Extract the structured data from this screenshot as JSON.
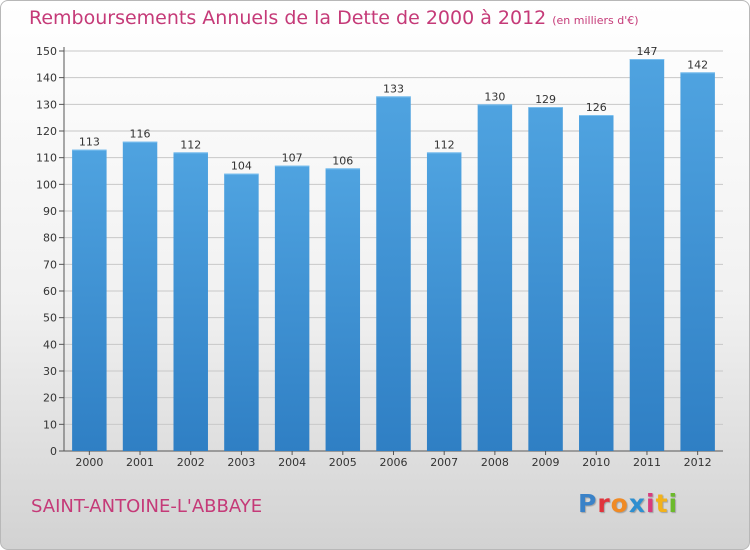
{
  "title": "Remboursements Annuels de la Dette de 2000 à 2012",
  "unit": "(en milliers d'€)",
  "commune": "SAINT-ANTOINE-L'ABBAYE",
  "logo": {
    "text": "Proxiti",
    "letter_colors": [
      "#3a82c8",
      "#e0343c",
      "#f08a24",
      "#2e8fd0",
      "#d83b7d",
      "#f2b21b",
      "#6cba2c"
    ]
  },
  "colors": {
    "bar": "#4fa3e0",
    "bar_dark": "#2f7fc4",
    "grid": "#c8c8c8",
    "title": "#c53a78"
  },
  "chart_data": {
    "type": "bar",
    "categories": [
      "2000",
      "2001",
      "2002",
      "2003",
      "2004",
      "2005",
      "2006",
      "2007",
      "2008",
      "2009",
      "2010",
      "2011",
      "2012"
    ],
    "values": [
      113,
      116,
      112,
      104,
      107,
      106,
      133,
      112,
      130,
      129,
      126,
      147,
      142
    ],
    "ylim": [
      0,
      150
    ],
    "yticks": [
      0,
      10,
      20,
      30,
      40,
      50,
      60,
      70,
      80,
      90,
      100,
      110,
      120,
      130,
      140,
      150
    ],
    "grid": true,
    "data_labels": true
  }
}
